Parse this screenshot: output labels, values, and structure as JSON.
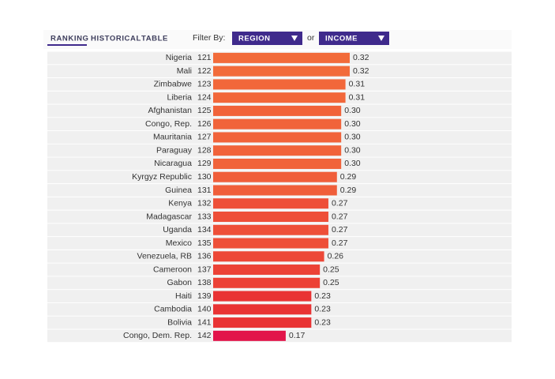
{
  "tabs": [
    "RANKING",
    "HISTORICAL",
    "TABLE"
  ],
  "filter_label": "Filter By:",
  "filters": [
    "REGION",
    "INCOME"
  ],
  "filter_joiner": "or",
  "chart_data": {
    "type": "bar",
    "categories": [
      "Nigeria",
      "Mali",
      "Zimbabwe",
      "Liberia",
      "Afghanistan",
      "Congo, Rep.",
      "Mauritania",
      "Paraguay",
      "Nicaragua",
      "Kyrgyz Republic",
      "Guinea",
      "Kenya",
      "Madagascar",
      "Uganda",
      "Mexico",
      "Venezuela, RB",
      "Cameroon",
      "Gabon",
      "Haiti",
      "Cambodia",
      "Bolivia",
      "Congo, Dem. Rep."
    ],
    "ranks": [
      121,
      122,
      123,
      124,
      125,
      126,
      127,
      128,
      129,
      130,
      131,
      132,
      133,
      134,
      135,
      136,
      137,
      138,
      139,
      140,
      141,
      142
    ],
    "values": [
      0.32,
      0.32,
      0.31,
      0.31,
      0.3,
      0.3,
      0.3,
      0.3,
      0.3,
      0.29,
      0.29,
      0.27,
      0.27,
      0.27,
      0.27,
      0.26,
      0.25,
      0.25,
      0.23,
      0.23,
      0.23,
      0.17
    ],
    "value_labels": [
      "0.32",
      "0.32",
      "0.31",
      "0.31",
      "0.30",
      "0.30",
      "0.30",
      "0.30",
      "0.30",
      "0.29",
      "0.29",
      "0.27",
      "0.27",
      "0.27",
      "0.27",
      "0.26",
      "0.25",
      "0.25",
      "0.23",
      "0.23",
      "0.23",
      "0.17"
    ],
    "colors": [
      "#f26b3a",
      "#f26b3a",
      "#f2673a",
      "#f2673a",
      "#f1633a",
      "#f1633a",
      "#f1633a",
      "#f1633a",
      "#f1633a",
      "#f05e3a",
      "#f05e3a",
      "#ee4f38",
      "#ee4f38",
      "#ee4f38",
      "#ee4f38",
      "#ed4837",
      "#ec4236",
      "#ec4236",
      "#e93334",
      "#e93334",
      "#e93334",
      "#e2144a"
    ]
  }
}
